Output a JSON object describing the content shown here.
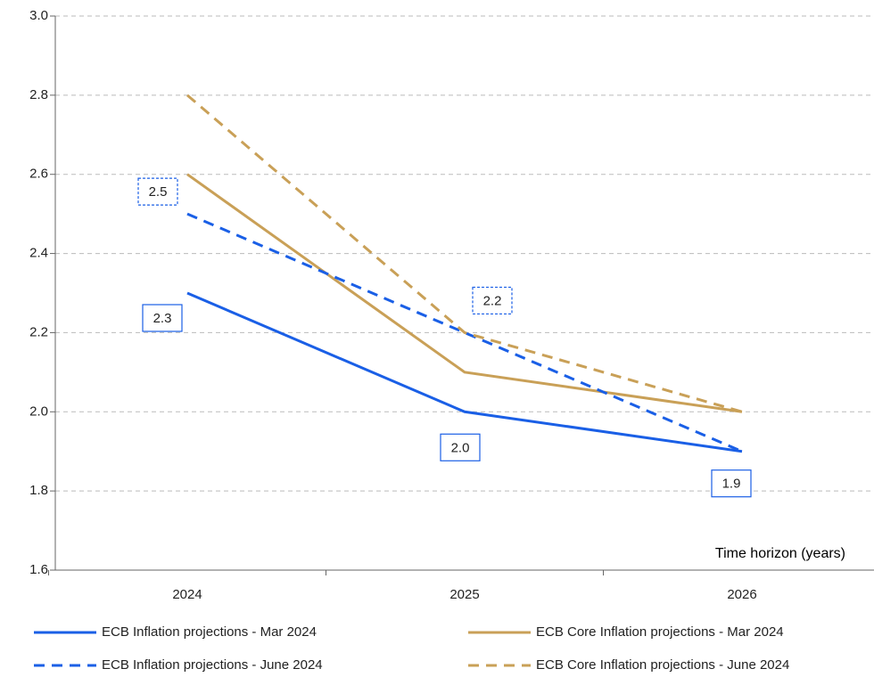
{
  "chart_data": {
    "type": "line",
    "x_label": "Time horizon (years)",
    "categories": [
      "2024",
      "2025",
      "2026"
    ],
    "series": [
      {
        "name": "ECB Inflation projections - Mar 2024",
        "color": "#1a5fe6",
        "dash": false,
        "values": [
          2.3,
          2.0,
          1.9
        ],
        "value_labels": [
          "2.3",
          "2.0",
          "1.9"
        ]
      },
      {
        "name": "ECB Core Inflation projections - Mar 2024",
        "color": "#c9a057",
        "dash": false,
        "values": [
          2.6,
          2.1,
          2.0
        ]
      },
      {
        "name": "ECB Inflation projections - June 2024",
        "color": "#1a5fe6",
        "dash": true,
        "values": [
          2.5,
          2.2,
          1.9
        ],
        "value_labels": [
          "2.5",
          "2.2",
          null
        ]
      },
      {
        "name": "ECB Core Inflation projections - June 2024",
        "color": "#c9a057",
        "dash": true,
        "values": [
          2.8,
          2.2,
          2.0
        ]
      }
    ],
    "ylim": [
      1.6,
      3.0
    ],
    "yticks": [
      1.6,
      1.8,
      {
        "value": 2,
        "label": "2.0"
      },
      2.2,
      2.4,
      2.6,
      2.8,
      {
        "value": 3,
        "label": "3.0"
      }
    ],
    "grid": true
  }
}
